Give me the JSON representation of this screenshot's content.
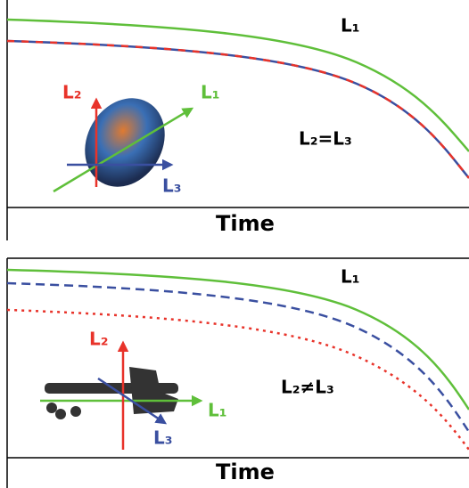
{
  "panels": [
    {
      "curve_label": "L₁",
      "relation": "L₂=L₃",
      "axis_label": "Time",
      "arrows": {
        "l1": "L₁",
        "l2": "L₂",
        "l3": "L₃"
      }
    },
    {
      "curve_label": "L₁",
      "relation": "L₂≠L₃",
      "axis_label": "Time",
      "arrows": {
        "l1": "L₁",
        "l2": "L₂",
        "l3": "L₃"
      }
    }
  ]
}
